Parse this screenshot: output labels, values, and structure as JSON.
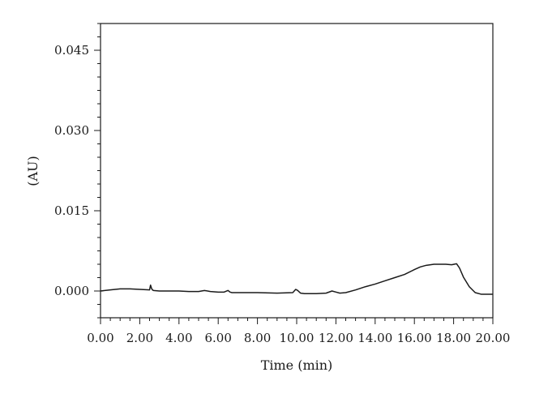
{
  "chart_data": {
    "type": "line",
    "title": "",
    "xlabel": "Time (min)",
    "ylabel": "(AU)",
    "xlim": [
      0,
      20
    ],
    "ylim": [
      -0.005,
      0.05
    ],
    "grid": false,
    "x_ticks": [
      0,
      2,
      4,
      6,
      8,
      10,
      12,
      14,
      16,
      18,
      20
    ],
    "x_tick_labels": [
      "0.00",
      "2.00",
      "4.00",
      "6.00",
      "8.00",
      "10.00",
      "12.00",
      "14.00",
      "16.00",
      "18.00",
      "20.00"
    ],
    "y_ticks": [
      0,
      0.015,
      0.03,
      0.045
    ],
    "y_tick_labels": [
      "0.000",
      "0.015",
      "0.030",
      "0.045"
    ],
    "line_color": "#1a1a1a",
    "series": [
      {
        "x": [
          0.0,
          0.5,
          1.0,
          1.5,
          2.0,
          2.5,
          2.55,
          2.6,
          2.65,
          2.7,
          3.0,
          3.5,
          4.0,
          4.5,
          5.0,
          5.3,
          5.6,
          6.0,
          6.3,
          6.5,
          6.6,
          6.7,
          7.0,
          8.0,
          9.0,
          9.8,
          9.95,
          10.05,
          10.2,
          10.4,
          11.0,
          11.5,
          11.8,
          12.0,
          12.2,
          12.5,
          13.0,
          13.5,
          14.0,
          14.5,
          15.0,
          15.5,
          16.0,
          16.3,
          16.6,
          17.0,
          17.3,
          17.6,
          17.9,
          18.15,
          18.3,
          18.5,
          18.8,
          19.1,
          19.4,
          19.6,
          19.8,
          20.0
        ],
        "y": [
          0.0,
          0.0002,
          0.0004,
          0.0004,
          0.0003,
          0.0002,
          0.0011,
          0.0005,
          0.0002,
          0.0001,
          0.0,
          0.0,
          0.0,
          -0.0001,
          -0.0001,
          0.0001,
          -0.0001,
          -0.0002,
          -0.0002,
          0.0001,
          -0.0002,
          -0.0003,
          -0.0003,
          -0.0003,
          -0.0004,
          -0.0003,
          0.0003,
          0.0001,
          -0.0004,
          -0.0005,
          -0.0005,
          -0.0004,
          0.0,
          -0.0002,
          -0.0004,
          -0.0003,
          0.0002,
          0.0008,
          0.0013,
          0.0019,
          0.0025,
          0.0031,
          0.004,
          0.0045,
          0.0048,
          0.005,
          0.005,
          0.005,
          0.0049,
          0.0051,
          0.0043,
          0.0026,
          0.0008,
          -0.0003,
          -0.0006,
          -0.0006,
          -0.0006,
          -0.0006
        ]
      }
    ]
  }
}
